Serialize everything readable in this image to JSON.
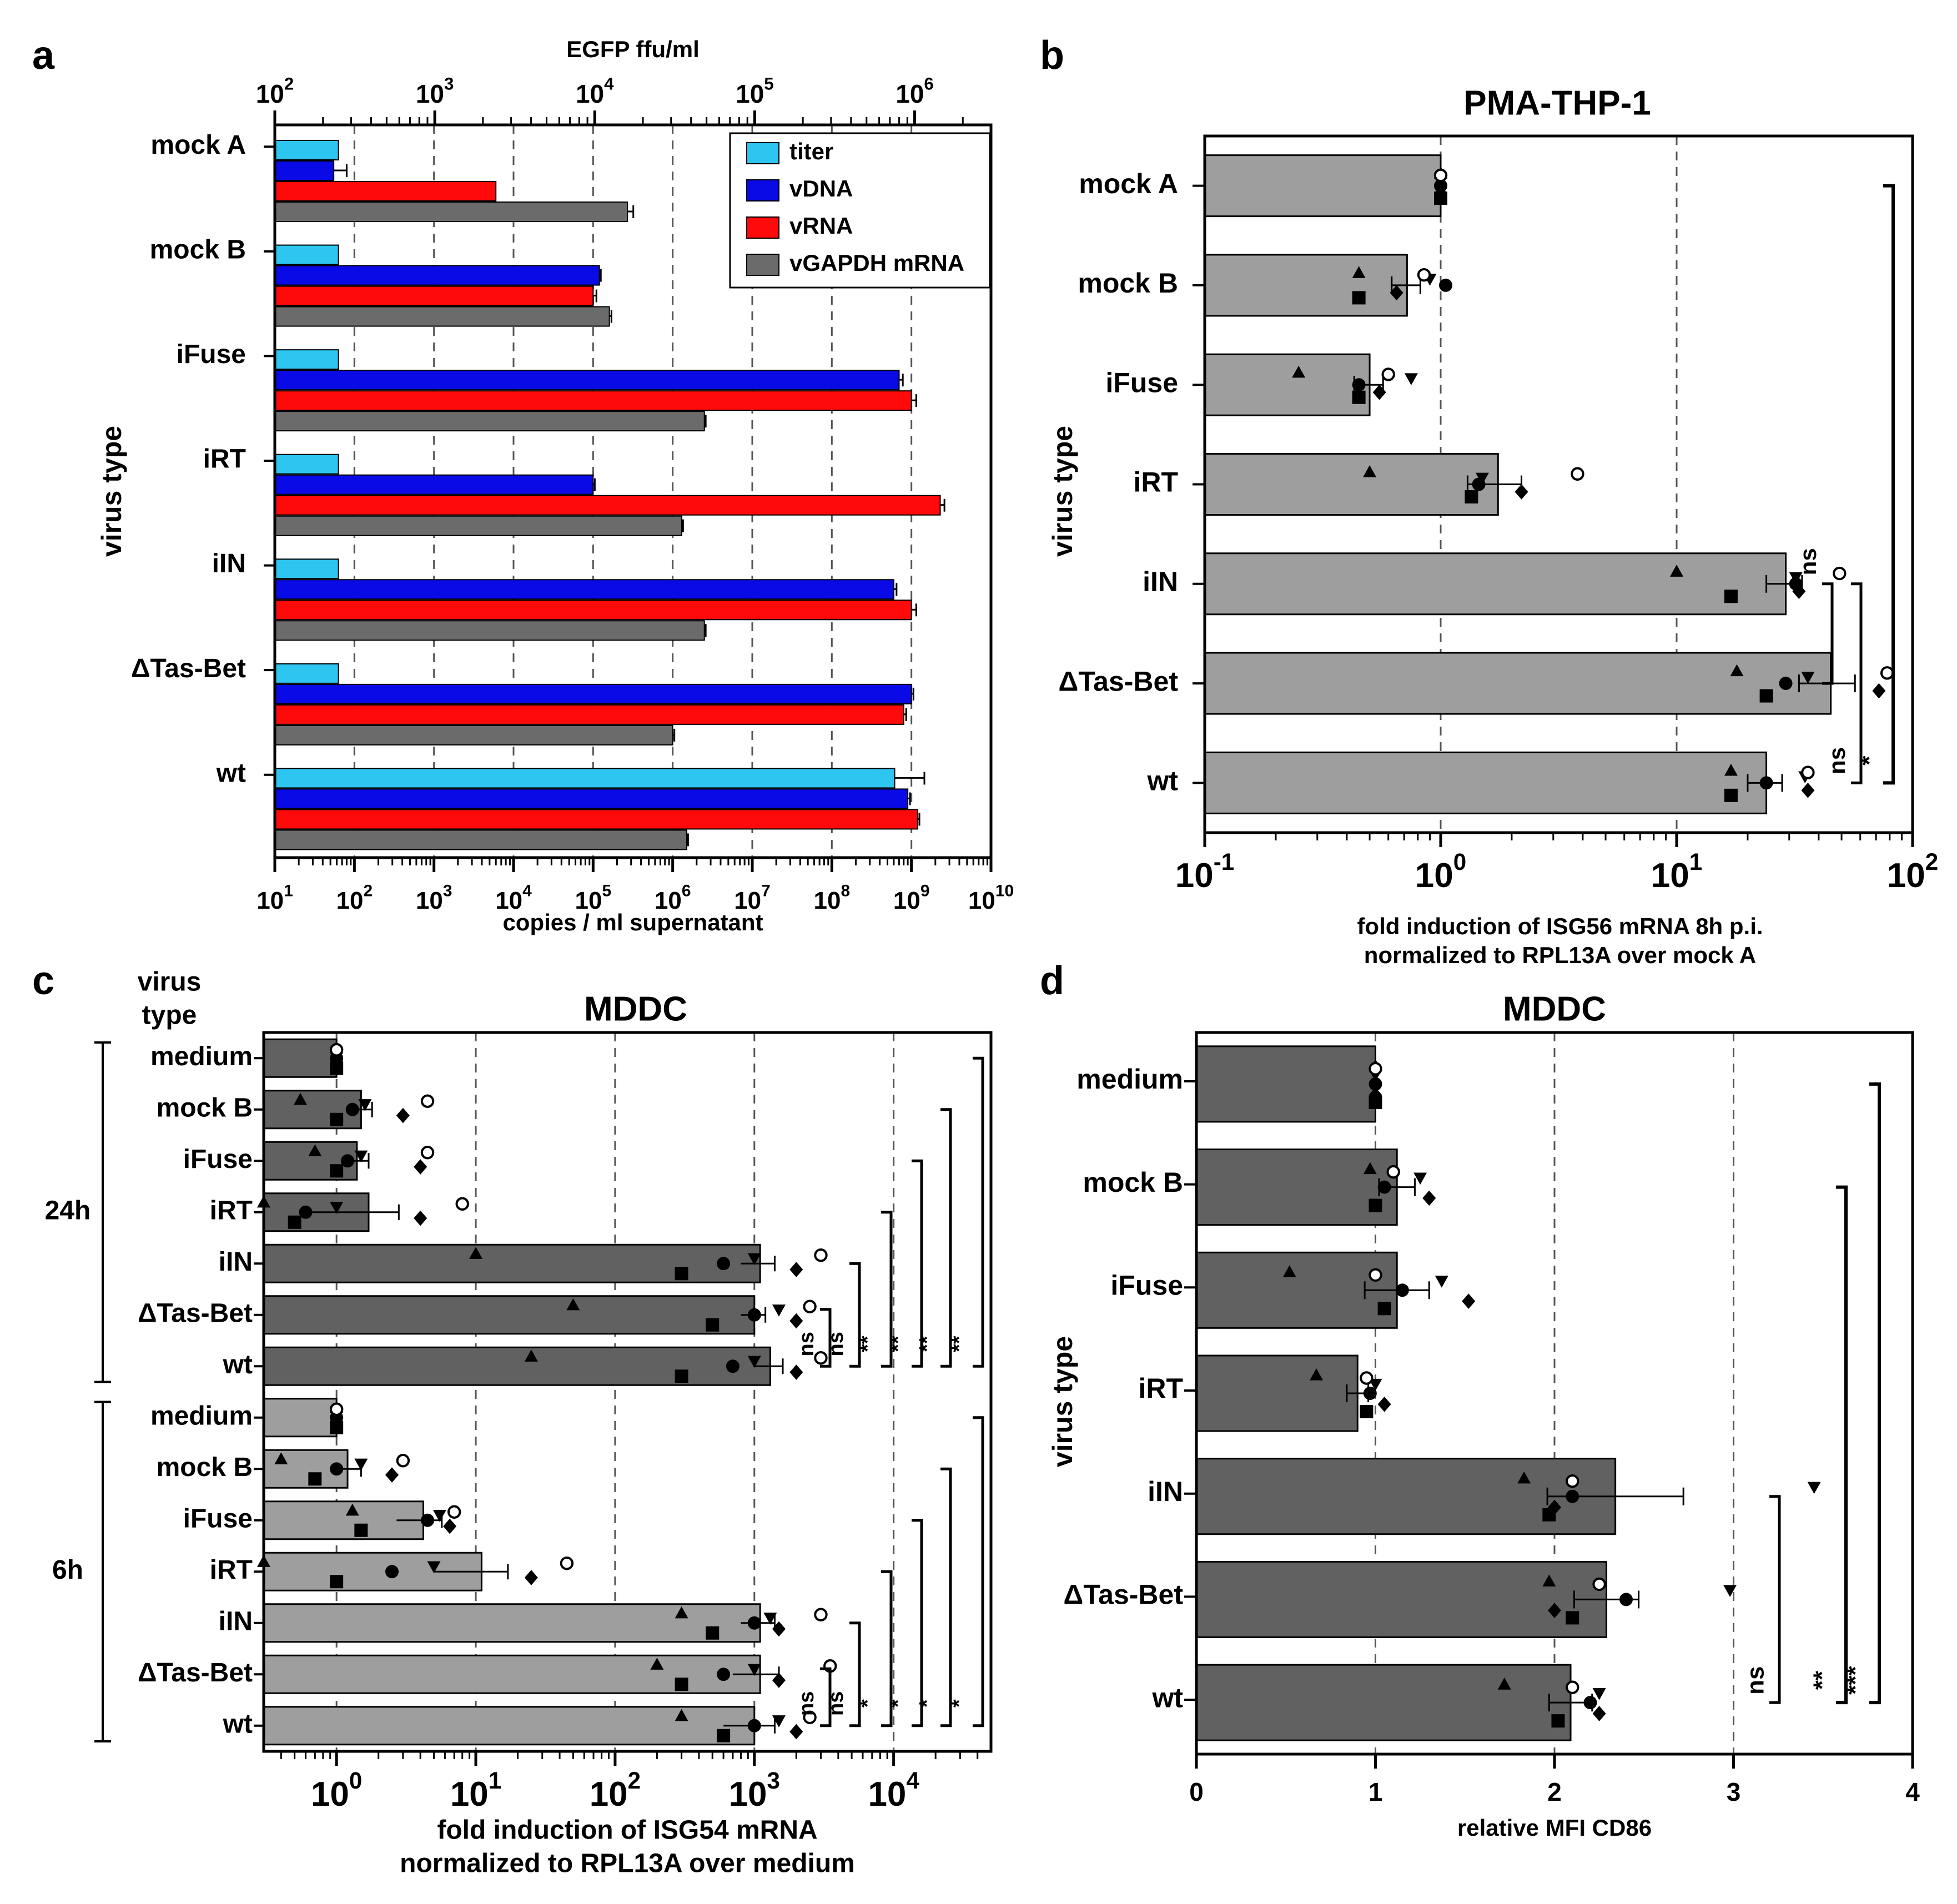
{
  "chart_data": [
    {
      "panel_letter": "a",
      "type": "bar",
      "orientation": "horizontal",
      "scale": "log",
      "ylabel": "virus type",
      "xlabel": "copies / ml supernatant",
      "xlabel_top": "EGFP ffu/ml",
      "xlim": [
        10,
        10000000000
      ],
      "xlim_top": [
        100,
        3000000
      ],
      "xticks": [
        {
          "base": "10",
          "exp": "1"
        },
        {
          "base": "10",
          "exp": "2"
        },
        {
          "base": "10",
          "exp": "3"
        },
        {
          "base": "10",
          "exp": "4"
        },
        {
          "base": "10",
          "exp": "5"
        },
        {
          "base": "10",
          "exp": "6"
        },
        {
          "base": "10",
          "exp": "7"
        },
        {
          "base": "10",
          "exp": "8"
        },
        {
          "base": "10",
          "exp": "9"
        },
        {
          "base": "10",
          "exp": "10"
        }
      ],
      "xticks_top": [
        {
          "base": "10",
          "exp": "2"
        },
        {
          "base": "10",
          "exp": "3"
        },
        {
          "base": "10",
          "exp": "4"
        },
        {
          "base": "10",
          "exp": "5"
        },
        {
          "base": "10",
          "exp": "6"
        }
      ],
      "categories": [
        "mock A",
        "mock B",
        "iFuse",
        "iRT",
        "iIN",
        "ΔTas-Bet",
        "wt"
      ],
      "legend_position": "top-right",
      "series": [
        {
          "name": "titer",
          "color": "#2ec6f0",
          "axis": "top",
          "values": [
            250,
            250,
            250,
            250,
            250,
            250,
            750000
          ],
          "errors": [
            0,
            0,
            0,
            0,
            0,
            0,
            400000
          ]
        },
        {
          "name": "vDNA",
          "color": "#0a0ae6",
          "axis": "bottom",
          "values": [
            55,
            120000,
            700000000,
            100000,
            600000000,
            1000000000,
            900000000
          ],
          "errors": [
            25,
            5000,
            80000000,
            5000,
            50000000,
            60000000,
            60000000
          ]
        },
        {
          "name": "vRNA",
          "color": "#ff0a0a",
          "axis": "bottom",
          "values": [
            6000,
            100000,
            1000000000,
            2300000000,
            1000000000,
            800000000,
            1200000000
          ],
          "errors": [
            0,
            10000,
            150000000,
            300000000,
            150000000,
            60000000,
            60000000
          ]
        },
        {
          "name": "vGAPDH mRNA",
          "color": "#6b6b6b",
          "axis": "bottom",
          "values": [
            270000,
            160000,
            2500000,
            1300000,
            2500000,
            1000000,
            1500000
          ],
          "errors": [
            50000,
            10000,
            100000,
            50000,
            100000,
            50000,
            60000
          ]
        }
      ]
    },
    {
      "panel_letter": "b",
      "type": "bar",
      "orientation": "horizontal",
      "scale": "log",
      "title": "PMA-THP-1",
      "ylabel": "virus type",
      "xlabel_lines": [
        "fold induction of ISG56 mRNA 8h p.i.",
        "normalized to RPL13A over mock A"
      ],
      "xlim": [
        0.1,
        100
      ],
      "xticks": [
        {
          "base": "10",
          "exp": "-1"
        },
        {
          "base": "10",
          "exp": "0"
        },
        {
          "base": "10",
          "exp": "1"
        },
        {
          "base": "10",
          "exp": "2"
        }
      ],
      "categories": [
        "mock A",
        "mock B",
        "iFuse",
        "iRT",
        "iIN",
        "ΔTas-Bet",
        "wt"
      ],
      "values": [
        1.0,
        0.72,
        0.5,
        1.75,
        29,
        45,
        24
      ],
      "errors": [
        0.03,
        0.1,
        0.07,
        0.45,
        5,
        12,
        4
      ],
      "points": [
        [
          1.0,
          1.0,
          1.0,
          1.0,
          1.0,
          1.0
        ],
        [
          0.45,
          0.45,
          1.05,
          0.9,
          0.65,
          0.85
        ],
        [
          0.25,
          0.45,
          0.45,
          0.75,
          0.55,
          0.6
        ],
        [
          0.5,
          1.35,
          1.45,
          1.5,
          2.2,
          3.8
        ],
        [
          10,
          17,
          32,
          32,
          33,
          49
        ],
        [
          18,
          24,
          29,
          36,
          72,
          78
        ],
        [
          17,
          17,
          24,
          35,
          36,
          36
        ]
      ],
      "grid": true,
      "significance": [
        {
          "from": "ΔTas-Bet",
          "to": "iIN",
          "label": "ns"
        },
        {
          "from": "wt",
          "to": "iIN",
          "label": "ns"
        },
        {
          "from": "mock A",
          "to": "wt",
          "label": "*"
        }
      ]
    },
    {
      "panel_letter": "c",
      "type": "bar",
      "orientation": "horizontal",
      "scale": "log",
      "title": "MDDC",
      "ylabel_lines": [
        "virus",
        "type"
      ],
      "xlabel_lines": [
        "fold induction of ISG54 mRNA",
        "normalized to RPL13A over medium"
      ],
      "xlim": [
        0.3,
        50000
      ],
      "xticks": [
        {
          "base": "10",
          "exp": "0"
        },
        {
          "base": "10",
          "exp": "1"
        },
        {
          "base": "10",
          "exp": "2"
        },
        {
          "base": "10",
          "exp": "3"
        },
        {
          "base": "10",
          "exp": "4"
        }
      ],
      "groups": [
        {
          "label": "24h",
          "color": "#616161",
          "categories": [
            "medium",
            "mock B",
            "iFuse",
            "iRT",
            "iIN",
            "ΔTas-Bet",
            "wt"
          ],
          "values": [
            1.0,
            1.5,
            1.4,
            1.7,
            1100,
            1000,
            1300
          ],
          "errors": [
            0.05,
            0.3,
            0.3,
            1.1,
            300,
            200,
            300
          ],
          "points": [
            [
              1.0,
              1.0,
              1.0,
              1.0,
              1.0,
              1.0
            ],
            [
              0.55,
              1.0,
              1.3,
              1.6,
              3.0,
              4.5
            ],
            [
              0.7,
              1.0,
              1.2,
              1.5,
              4.0,
              4.5
            ],
            [
              0.3,
              0.5,
              0.6,
              1.0,
              4.0,
              8.0
            ],
            [
              10,
              300,
              600,
              1000,
              2000,
              3000
            ],
            [
              50,
              500,
              1000,
              1500,
              2000,
              2500
            ],
            [
              25,
              300,
              700,
              1000,
              2000,
              3000
            ]
          ]
        },
        {
          "label": "6h",
          "color": "#9e9e9e",
          "categories": [
            "medium",
            "mock B",
            "iFuse",
            "iRT",
            "iIN",
            "ΔTas-Bet",
            "wt"
          ],
          "values": [
            1.0,
            1.2,
            4.2,
            11,
            1100,
            1100,
            1000
          ],
          "errors": [
            0.05,
            0.3,
            1.5,
            6,
            300,
            400,
            400
          ],
          "points": [
            [
              1.0,
              1.0,
              1.0,
              1.0,
              1.0,
              1.0
            ],
            [
              0.4,
              0.7,
              1.0,
              1.5,
              2.5,
              3.0
            ],
            [
              1.3,
              1.5,
              4.5,
              5.5,
              6.5,
              7.0
            ],
            [
              0.3,
              1.0,
              2.5,
              5.0,
              25,
              45
            ],
            [
              300,
              500,
              1000,
              1300,
              1500,
              3000
            ],
            [
              200,
              300,
              600,
              1000,
              1500,
              3500
            ],
            [
              300,
              600,
              1000,
              1500,
              2000,
              2500
            ]
          ]
        }
      ],
      "grid": true,
      "significance_24h": [
        "ns",
        "ns",
        "**",
        "**",
        "**",
        "**"
      ],
      "significance_6h": [
        "ns",
        "ns",
        "*",
        "*",
        "*",
        "*"
      ]
    },
    {
      "panel_letter": "d",
      "type": "bar",
      "orientation": "horizontal",
      "scale": "linear",
      "title": "MDDC",
      "ylabel": "virus type",
      "xlabel": "relative MFI CD86",
      "xlim": [
        0,
        4
      ],
      "xticks": [
        "0",
        "1",
        "2",
        "3",
        "4"
      ],
      "categories": [
        "medium",
        "mock B",
        "iFuse",
        "iRT",
        "iIN",
        "ΔTas-Bet",
        "wt"
      ],
      "values": [
        1.0,
        1.12,
        1.12,
        0.9,
        2.34,
        2.29,
        2.09
      ],
      "errors": [
        0.0,
        0.1,
        0.18,
        0.06,
        0.38,
        0.18,
        0.12
      ],
      "points": [
        [
          1.0,
          1.0,
          1.0,
          1.0,
          1.0,
          1.0
        ],
        [
          0.97,
          1.0,
          1.05,
          1.25,
          1.3,
          1.1
        ],
        [
          0.52,
          1.05,
          1.15,
          1.37,
          1.52,
          1.0
        ],
        [
          0.67,
          0.95,
          0.97,
          1.0,
          1.05,
          0.95
        ],
        [
          1.83,
          1.97,
          2.1,
          3.45,
          2.0,
          2.1
        ],
        [
          1.97,
          2.1,
          2.4,
          2.98,
          2.0,
          2.25
        ],
        [
          1.72,
          2.02,
          2.2,
          2.25,
          2.25,
          2.1
        ]
      ],
      "grid": true,
      "significance": [
        {
          "from": "wt",
          "to": "iIN",
          "label": "ns"
        },
        {
          "from": "wt",
          "to": "mock B",
          "label": "**"
        },
        {
          "from": "wt",
          "to": "medium",
          "label": "***"
        }
      ]
    }
  ]
}
